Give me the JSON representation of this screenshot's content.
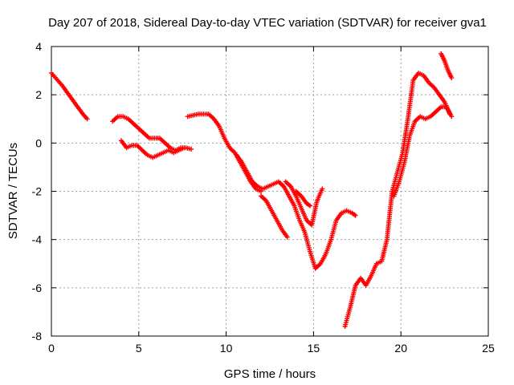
{
  "chart_data": {
    "type": "scatter",
    "title": "Day 207 of 2018, Sidereal Day-to-day VTEC variation (SDTVAR) for receiver gva1",
    "xlabel": "GPS time / hours",
    "ylabel": "SDTVAR / TECUs",
    "xlim": [
      0,
      25
    ],
    "ylim": [
      -8,
      4
    ],
    "xticks": [
      "0",
      "5",
      "10",
      "15",
      "20",
      "25"
    ],
    "yticks": [
      "-8",
      "-6",
      "-4",
      "-2",
      "0",
      "2",
      "4"
    ],
    "grid": true,
    "marker": "plus",
    "color": "#ff0000",
    "series": [
      {
        "x": [
          0.0,
          0.3,
          0.6,
          0.9,
          1.2,
          1.5,
          1.8,
          2.05
        ],
        "y": [
          2.9,
          2.65,
          2.4,
          2.1,
          1.8,
          1.5,
          1.2,
          1.0
        ]
      },
      {
        "x": [
          3.5,
          3.8,
          4.1,
          4.4,
          4.7,
          5.0,
          5.3,
          5.6,
          5.9,
          6.2,
          6.5,
          6.8,
          7.1,
          7.4,
          7.7,
          8.0
        ],
        "y": [
          0.9,
          1.1,
          1.1,
          1.0,
          0.8,
          0.6,
          0.4,
          0.2,
          0.2,
          0.2,
          0.0,
          -0.2,
          -0.3,
          -0.2,
          -0.2,
          -0.25
        ]
      },
      {
        "x": [
          4.0,
          4.3,
          4.6,
          4.9,
          5.2,
          5.5,
          5.8,
          6.1,
          6.4,
          6.7,
          7.0,
          7.3,
          7.6
        ],
        "y": [
          0.1,
          -0.2,
          -0.1,
          -0.1,
          -0.3,
          -0.5,
          -0.6,
          -0.5,
          -0.4,
          -0.3,
          -0.4,
          -0.3,
          -0.2
        ]
      },
      {
        "x": [
          7.8,
          8.1,
          8.4,
          8.7,
          9.0,
          9.3,
          9.6,
          9.9,
          10.2,
          10.5,
          10.8,
          11.1,
          11.4,
          11.7,
          12.0
        ],
        "y": [
          1.1,
          1.15,
          1.2,
          1.2,
          1.2,
          1.0,
          0.7,
          0.2,
          -0.2,
          -0.4,
          -0.8,
          -1.2,
          -1.6,
          -1.9,
          -2.0
        ]
      },
      {
        "x": [
          10.6,
          10.9,
          11.2,
          11.5,
          11.8,
          12.1,
          12.4,
          12.7,
          13.0,
          13.3,
          13.6,
          13.9,
          14.2,
          14.5,
          14.8,
          15.1,
          15.4,
          15.7,
          16.0,
          16.3,
          16.6,
          16.9,
          17.2,
          17.4
        ],
        "y": [
          -0.5,
          -0.8,
          -1.2,
          -1.6,
          -1.8,
          -1.9,
          -1.8,
          -1.7,
          -1.6,
          -1.8,
          -2.2,
          -2.6,
          -3.2,
          -3.7,
          -4.5,
          -5.2,
          -5.0,
          -4.6,
          -4.0,
          -3.2,
          -2.9,
          -2.8,
          -2.9,
          -3.0
        ]
      },
      {
        "x": [
          12.0,
          12.3,
          12.6,
          12.9,
          13.2,
          13.5
        ],
        "y": [
          -2.2,
          -2.4,
          -2.8,
          -3.2,
          -3.6,
          -3.9
        ]
      },
      {
        "x": [
          13.4,
          13.7,
          14.0,
          14.3,
          14.6,
          14.9,
          15.2,
          15.5
        ],
        "y": [
          -1.6,
          -1.8,
          -2.2,
          -2.7,
          -3.2,
          -3.4,
          -2.4,
          -1.9
        ]
      },
      {
        "x": [
          14.0,
          14.3,
          14.6,
          14.8
        ],
        "y": [
          -2.0,
          -2.2,
          -2.5,
          -2.6
        ]
      },
      {
        "x": [
          16.8,
          17.1,
          17.4,
          17.7,
          18.0,
          18.3,
          18.6,
          18.9,
          19.2,
          19.5,
          19.8,
          20.1,
          20.4,
          20.7,
          21.0,
          21.3,
          21.6,
          21.9,
          22.2,
          22.5,
          22.8
        ],
        "y": [
          -7.6,
          -6.8,
          -5.9,
          -5.6,
          -5.9,
          -5.5,
          -5.0,
          -4.9,
          -4.0,
          -2.0,
          -1.2,
          -0.4,
          1.0,
          2.6,
          2.9,
          2.8,
          2.5,
          2.3,
          2.0,
          1.7,
          1.2
        ]
      },
      {
        "x": [
          19.6,
          19.9,
          20.2,
          20.5,
          20.8,
          21.1,
          21.4,
          21.7,
          22.0,
          22.3,
          22.6,
          22.9
        ],
        "y": [
          -2.2,
          -1.6,
          -0.8,
          0.3,
          0.9,
          1.1,
          1.0,
          1.1,
          1.3,
          1.5,
          1.5,
          1.1
        ]
      },
      {
        "x": [
          22.3,
          22.5,
          22.7,
          22.9
        ],
        "y": [
          3.7,
          3.4,
          3.0,
          2.7
        ]
      }
    ]
  }
}
